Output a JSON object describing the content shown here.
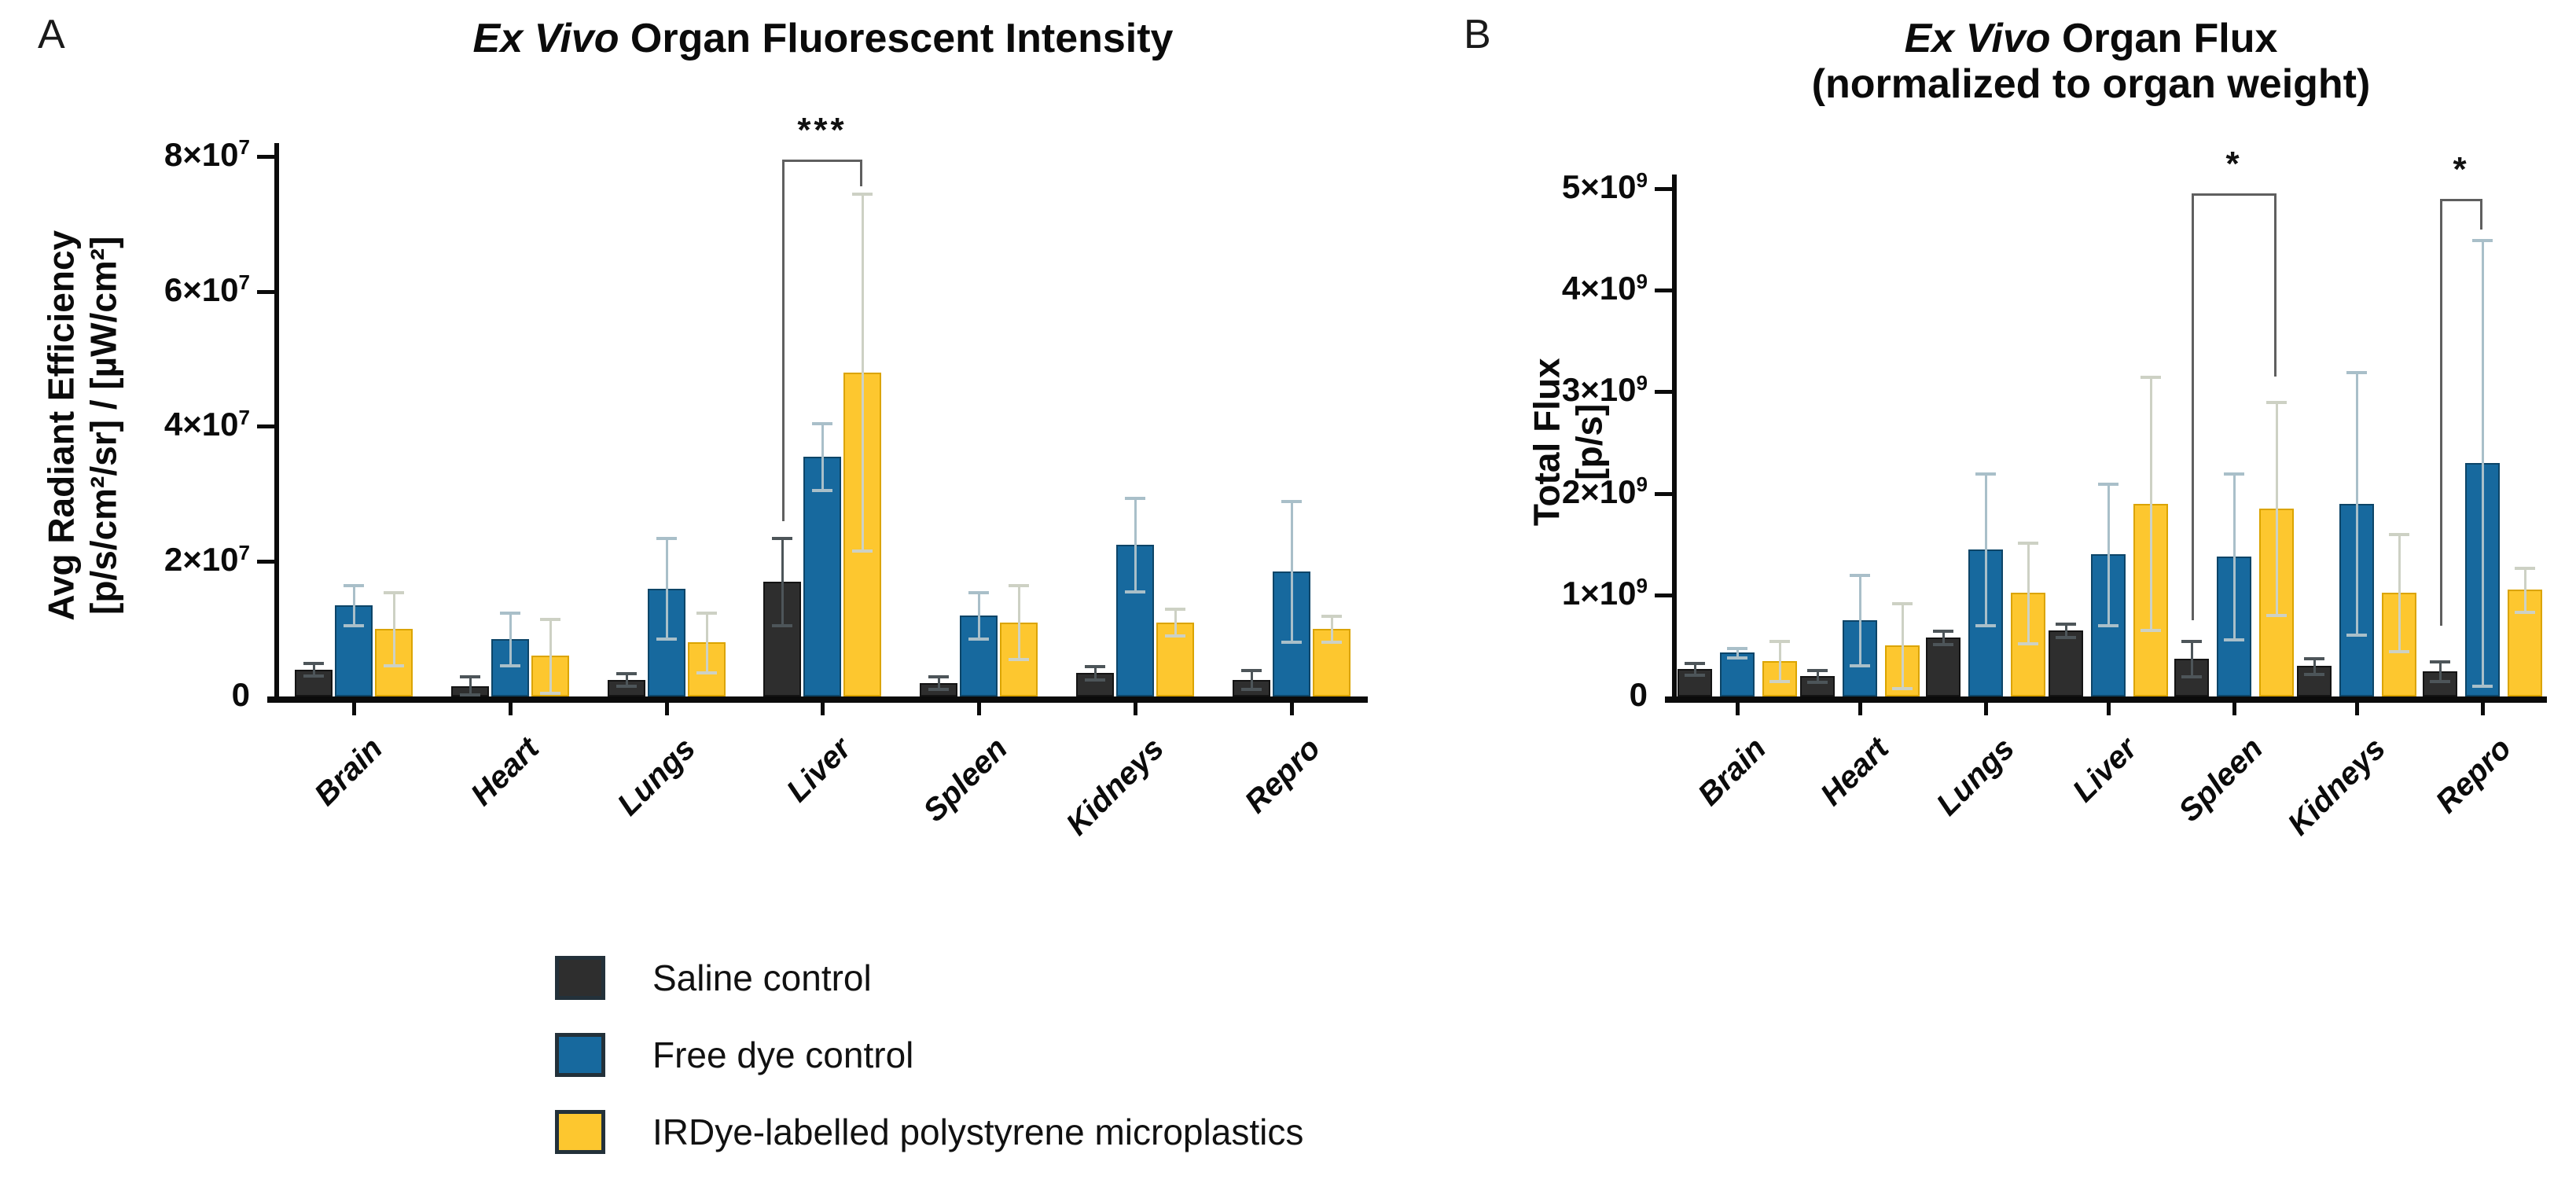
{
  "legend": {
    "items": [
      {
        "label": "Saline control",
        "color": "#2e2e2e",
        "border": "#141414",
        "err_color": "#4d5559"
      },
      {
        "label": "Free dye control",
        "color": "#17699e",
        "border": "#0d4568",
        "err_color": "#a9bfc9"
      },
      {
        "label": "IRDye-labelled polystyrene microplastics",
        "color": "#fdc72f",
        "border": "#dba400",
        "err_color": "#cdd1c4"
      }
    ]
  },
  "chart_data": [
    {
      "id": "panel_a",
      "type": "bar",
      "panel_label": "A",
      "title_italic": "Ex Vivo",
      "title_rest": " Organ Fluorescent Intensity",
      "title_line2": "",
      "ylabel_line1": "Avg Radiant Efficiency",
      "ylabel_line2": "[p/s/cm²/sr] / [µW/cm²]",
      "value_unit": "1e7",
      "ylim": [
        0,
        8
      ],
      "grid": false,
      "legend_position": "bottom-left",
      "yticks": [
        {
          "v": 0,
          "base": "0",
          "sup": ""
        },
        {
          "v": 2,
          "base": "2×10",
          "sup": "7"
        },
        {
          "v": 4,
          "base": "4×10",
          "sup": "7"
        },
        {
          "v": 6,
          "base": "6×10",
          "sup": "7"
        },
        {
          "v": 8,
          "base": "8×10",
          "sup": "7"
        }
      ],
      "categories": [
        "Brain",
        "Heart",
        "Lungs",
        "Liver",
        "Spleen",
        "Kidneys",
        "Repro"
      ],
      "series": [
        {
          "name": "Saline control",
          "values": [
            0.4,
            0.15,
            0.25,
            1.7,
            0.2,
            0.35,
            0.25
          ],
          "errors": [
            0.1,
            0.15,
            0.1,
            0.65,
            0.1,
            0.1,
            0.15
          ]
        },
        {
          "name": "Free dye control",
          "values": [
            1.35,
            0.85,
            1.6,
            3.55,
            1.2,
            2.25,
            1.85
          ],
          "errors": [
            0.3,
            0.4,
            0.75,
            0.5,
            0.35,
            0.7,
            1.05
          ]
        },
        {
          "name": "IRDye-labelled polystyrene microplastics",
          "values": [
            1.0,
            0.6,
            0.8,
            4.8,
            1.1,
            1.1,
            1.0
          ],
          "errors": [
            0.55,
            0.55,
            0.45,
            2.65,
            0.55,
            0.2,
            0.2
          ]
        }
      ],
      "significance": [
        {
          "label": "***",
          "group": 3,
          "from_series": 0,
          "to_series": 2,
          "top": 7.95,
          "arm_from_down_to": 2.6,
          "arm_to_down_to": 7.55
        }
      ]
    },
    {
      "id": "panel_b",
      "type": "bar",
      "panel_label": "B",
      "title_italic": "Ex Vivo",
      "title_rest": " Organ Flux",
      "title_line2": "(normalized to organ weight)",
      "ylabel_line1": "Total Flux",
      "ylabel_line2": "[p/s]",
      "value_unit": "1e9",
      "ylim": [
        0,
        5
      ],
      "grid": false,
      "legend_position": "none",
      "yticks": [
        {
          "v": 0,
          "base": "0",
          "sup": ""
        },
        {
          "v": 1,
          "base": "1×10",
          "sup": "9"
        },
        {
          "v": 2,
          "base": "2×10",
          "sup": "9"
        },
        {
          "v": 3,
          "base": "3×10",
          "sup": "9"
        },
        {
          "v": 4,
          "base": "4×10",
          "sup": "9"
        },
        {
          "v": 5,
          "base": "5×10",
          "sup": "9"
        }
      ],
      "categories": [
        "Brain",
        "Heart",
        "Lungs",
        "Liver",
        "Spleen",
        "Kidneys",
        "Repro"
      ],
      "series": [
        {
          "name": "Saline control",
          "values": [
            0.27,
            0.2,
            0.58,
            0.65,
            0.37,
            0.3,
            0.25
          ],
          "errors": [
            0.06,
            0.06,
            0.07,
            0.07,
            0.18,
            0.08,
            0.1
          ]
        },
        {
          "name": "Free dye control",
          "values": [
            0.43,
            0.75,
            1.45,
            1.4,
            1.38,
            1.9,
            2.3
          ],
          "errors": [
            0.05,
            0.45,
            0.75,
            0.7,
            0.82,
            1.3,
            2.2
          ]
        },
        {
          "name": "IRDye-labelled polystyrene microplastics",
          "values": [
            0.35,
            0.5,
            1.02,
            1.9,
            1.85,
            1.02,
            1.05
          ],
          "errors": [
            0.2,
            0.42,
            0.5,
            1.25,
            1.05,
            0.58,
            0.22
          ]
        }
      ],
      "significance": [
        {
          "label": "*",
          "group": 4,
          "from_series": 0,
          "to_series": 2,
          "top": 4.95,
          "arm_from_down_to": 0.75,
          "arm_to_down_to": 3.15
        },
        {
          "label": "*",
          "group": 6,
          "from_series": 0,
          "to_series": 1,
          "top": 4.9,
          "arm_from_down_to": 0.7,
          "arm_to_down_to": 4.6
        }
      ]
    }
  ]
}
